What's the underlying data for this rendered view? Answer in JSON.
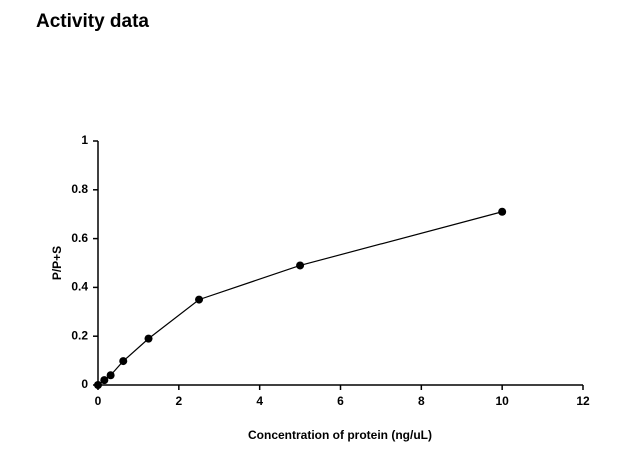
{
  "chart_data": {
    "type": "line",
    "title": "Activity data",
    "x_label": "Concentration of protein (ng/uL)",
    "y_label": "P/P+S",
    "x": [
      0,
      0.156,
      0.3125,
      0.625,
      1.25,
      2.5,
      5,
      10
    ],
    "values": [
      0,
      0.02,
      0.04,
      0.098,
      0.19,
      0.35,
      0.49,
      0.71
    ],
    "color": "#000000",
    "xlim": [
      0,
      12
    ],
    "xticks": [
      0,
      2,
      4,
      6,
      8,
      10,
      12
    ],
    "ylim": [
      0,
      1
    ],
    "yticks": [
      0,
      0.2,
      0.4,
      0.6,
      0.8,
      1
    ],
    "grid": false
  }
}
